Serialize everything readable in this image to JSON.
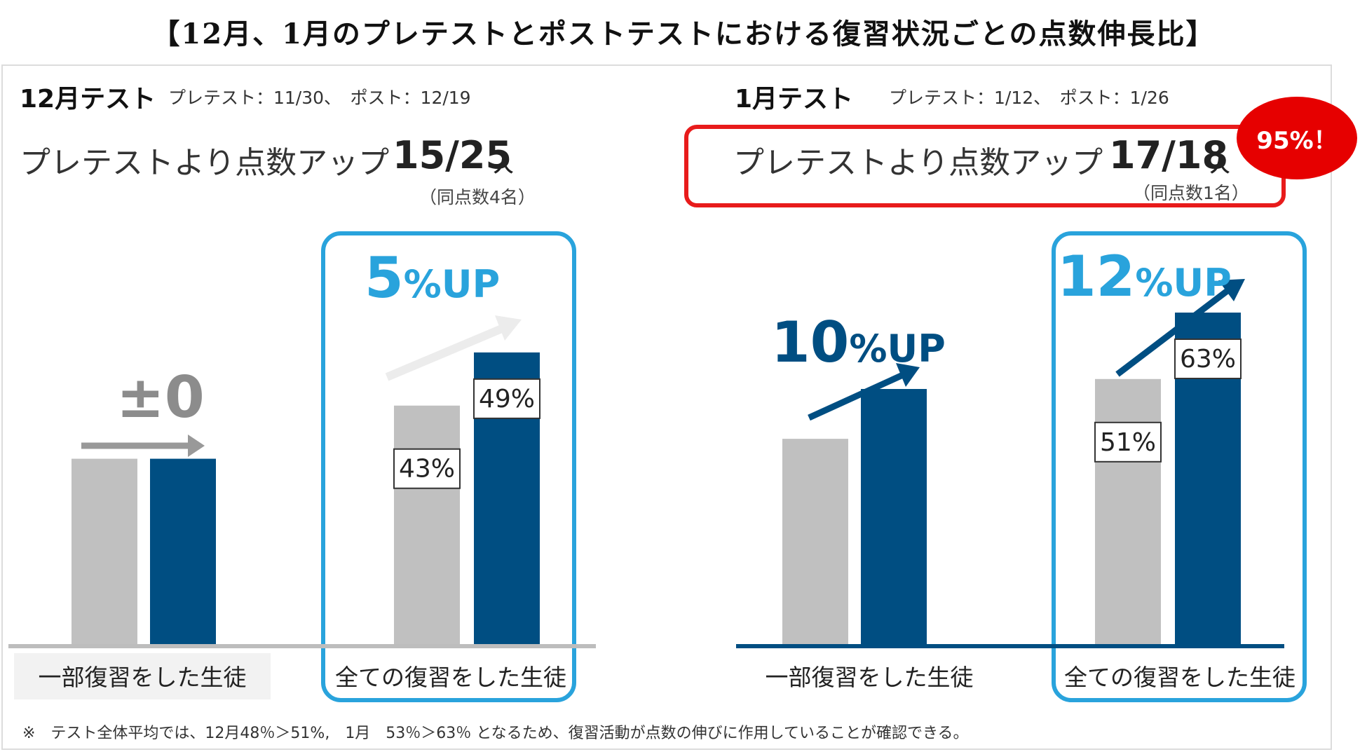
{
  "title": "【12月、1月のプレテストとポストテストにおける復習状況ごとの点数伸長比】",
  "panels": [
    {
      "heading": "12月テスト",
      "dates": "プレテスト：11/30、　ポスト：12/19",
      "improved_label": "プレテストより点数アップ",
      "improved_ratio": "15/25",
      "improved_unit": "人",
      "tie_note": "（同点数4名）",
      "groups": [
        {
          "label": "一部復習をした生徒",
          "change": "±0"
        },
        {
          "label": "全ての復習をした生徒",
          "change_num": "5",
          "change_suffix": "%UP"
        }
      ]
    },
    {
      "heading": "1月テスト",
      "dates": "プレテスト：1/12、　ポスト：1/26",
      "improved_label": "プレテストより点数アップ",
      "improved_ratio": "17/18",
      "improved_unit": "人",
      "tie_note": "（同点数1名）",
      "badge": "95%！",
      "groups": [
        {
          "label": "一部復習をした生徒",
          "change_num": "10",
          "change_suffix": "%UP"
        },
        {
          "label": "全ての復習をした生徒",
          "change_num": "12",
          "change_suffix": "%UP"
        }
      ]
    }
  ],
  "colors": {
    "pre": "#c0c0c0",
    "post": "#004e82",
    "highlight": "#29a3dc",
    "emphasis": "#e60000"
  },
  "chart_data": [
    {
      "type": "bar",
      "categories": [
        "一部復習をした生徒",
        "全ての復習をした生徒"
      ],
      "series": [
        {
          "values": [
            null,
            43
          ],
          "labels": [
            "",
            "43%"
          ]
        },
        {
          "values": [
            null,
            49
          ],
          "labels": [
            "",
            "49%"
          ]
        }
      ],
      "bar_heights_relative": {
        "pre": [
          0.56,
          0.72
        ],
        "post": [
          0.56,
          0.88
        ]
      }
    },
    {
      "type": "bar",
      "categories": [
        "一部復習をした生徒",
        "全ての復習をした生徒"
      ],
      "series": [
        {
          "values": [
            null,
            51
          ],
          "labels": [
            "",
            "51%"
          ]
        },
        {
          "values": [
            null,
            63
          ],
          "labels": [
            "",
            "63%"
          ]
        }
      ],
      "bar_heights_relative": {
        "pre": [
          0.62,
          0.8
        ],
        "post": [
          0.77,
          1.0
        ]
      }
    }
  ],
  "footnote": "※　テスト全体平均では、12月48％＞51%,　1月　53％＞63％ となるため、復習活動が点数の伸びに作用していることが確認できる。"
}
